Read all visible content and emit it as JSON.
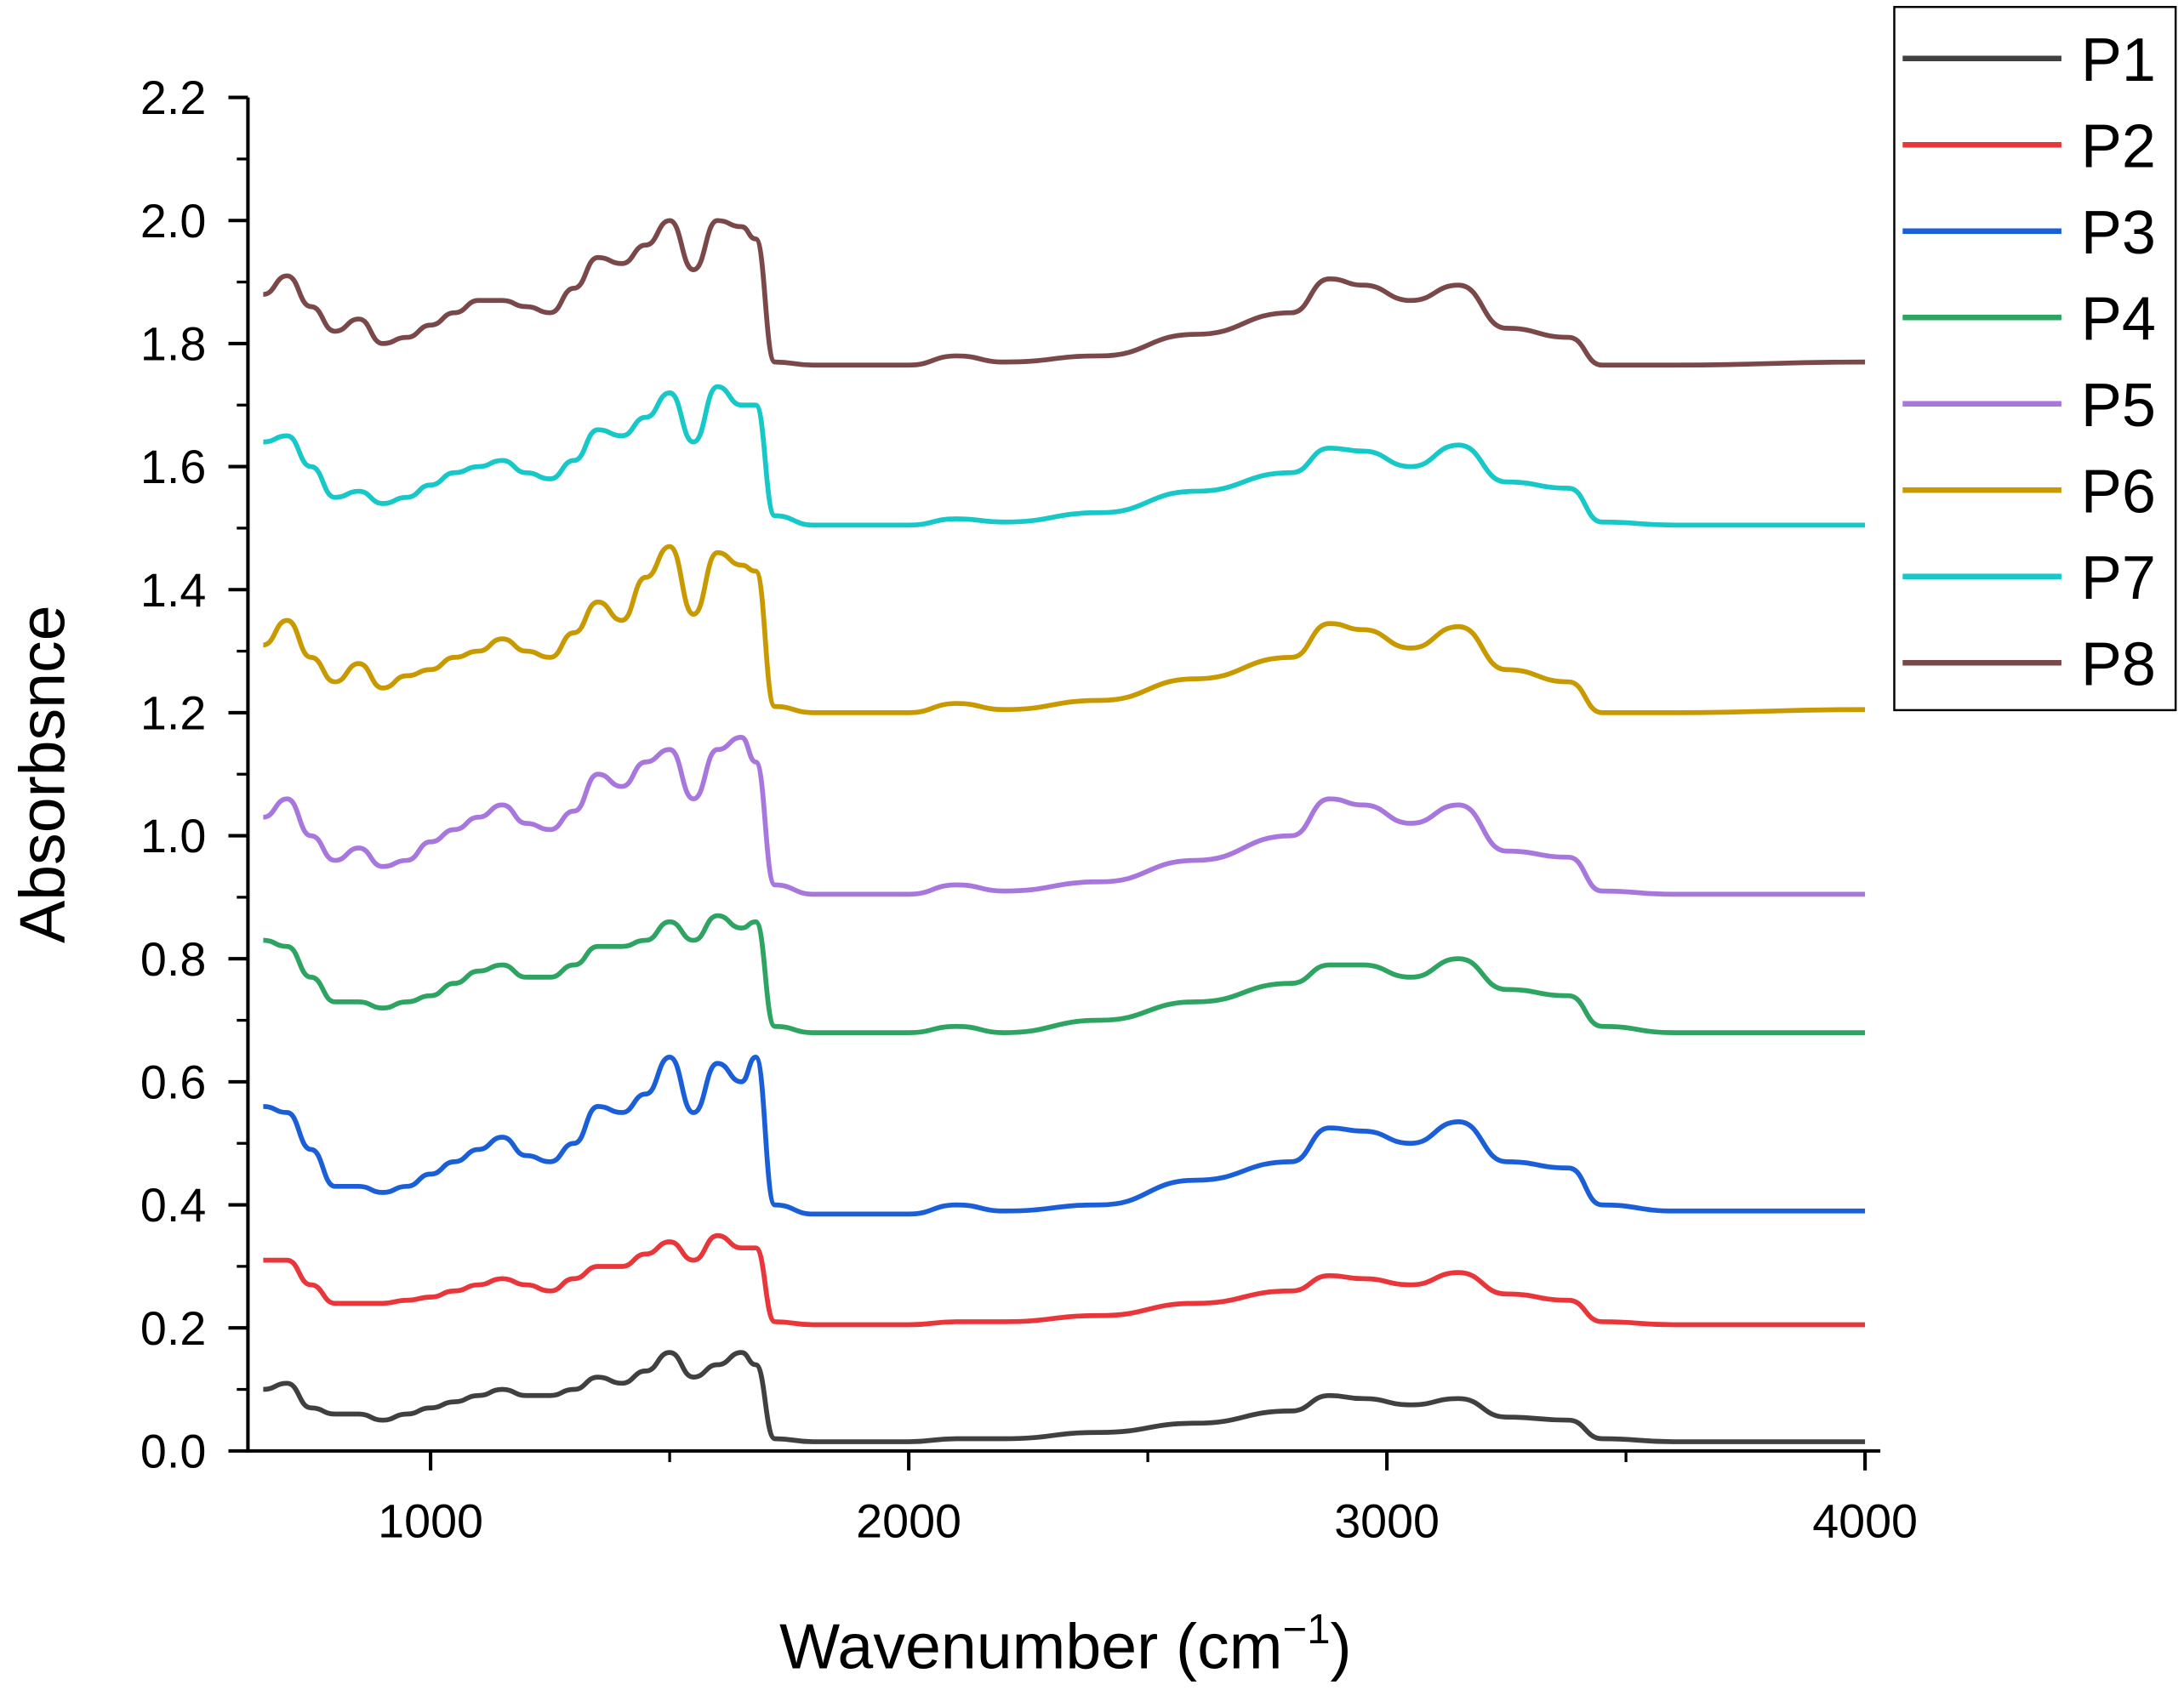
{
  "chart_data": {
    "type": "line",
    "title": "",
    "xlabel": "Wavenumber (cm",
    "xlabel_sup": "−1",
    "xlabel_close": ")",
    "ylabel": "Absorbsnce",
    "xlim": [
      618,
      4032
    ],
    "ylim": [
      0.0,
      2.2
    ],
    "xticks": [
      1000,
      2000,
      3000,
      4000
    ],
    "xtick_labels": [
      "1000",
      "2000",
      "3000",
      "4000"
    ],
    "yticks": [
      0.0,
      0.2,
      0.4,
      0.6,
      0.8,
      1.0,
      1.2,
      1.4,
      1.6,
      1.8,
      2.0,
      2.2
    ],
    "ytick_labels": [
      "0.0",
      "0.2",
      "0.4",
      "0.6",
      "0.8",
      "1.0",
      "1.2",
      "1.4",
      "1.6",
      "1.8",
      "2.0",
      "2.2"
    ],
    "grid": false,
    "legend_position": "top-right",
    "x": [
      650,
      700,
      750,
      800,
      850,
      900,
      950,
      1000,
      1050,
      1100,
      1150,
      1200,
      1250,
      1300,
      1350,
      1400,
      1450,
      1500,
      1550,
      1600,
      1650,
      1680,
      1720,
      1800,
      2000,
      2100,
      2200,
      2400,
      2600,
      2800,
      2880,
      2950,
      3050,
      3150,
      3250,
      3380,
      3450,
      3600,
      4000
    ],
    "series": [
      {
        "name": "P1",
        "color": "#404040",
        "values": [
          0.1,
          0.11,
          0.07,
          0.06,
          0.06,
          0.05,
          0.06,
          0.07,
          0.08,
          0.09,
          0.1,
          0.09,
          0.09,
          0.1,
          0.12,
          0.11,
          0.13,
          0.16,
          0.12,
          0.14,
          0.16,
          0.14,
          0.02,
          0.015,
          0.015,
          0.02,
          0.02,
          0.03,
          0.045,
          0.065,
          0.09,
          0.085,
          0.075,
          0.085,
          0.055,
          0.05,
          0.02,
          0.015,
          0.015
        ]
      },
      {
        "name": "P2",
        "color": "#e8363a",
        "values": [
          0.31,
          0.31,
          0.27,
          0.24,
          0.24,
          0.24,
          0.245,
          0.25,
          0.26,
          0.27,
          0.28,
          0.27,
          0.26,
          0.28,
          0.3,
          0.3,
          0.32,
          0.34,
          0.31,
          0.35,
          0.33,
          0.33,
          0.21,
          0.205,
          0.205,
          0.21,
          0.21,
          0.22,
          0.24,
          0.26,
          0.285,
          0.28,
          0.27,
          0.29,
          0.255,
          0.245,
          0.21,
          0.205,
          0.205
        ]
      },
      {
        "name": "P3",
        "color": "#1a5fd8",
        "values": [
          0.56,
          0.55,
          0.49,
          0.43,
          0.43,
          0.42,
          0.43,
          0.45,
          0.47,
          0.49,
          0.51,
          0.48,
          0.47,
          0.5,
          0.56,
          0.55,
          0.58,
          0.64,
          0.55,
          0.63,
          0.6,
          0.64,
          0.4,
          0.385,
          0.385,
          0.4,
          0.39,
          0.4,
          0.44,
          0.47,
          0.525,
          0.52,
          0.5,
          0.535,
          0.47,
          0.46,
          0.4,
          0.39,
          0.39
        ]
      },
      {
        "name": "P4",
        "color": "#2ea462",
        "values": [
          0.83,
          0.82,
          0.77,
          0.73,
          0.73,
          0.72,
          0.73,
          0.74,
          0.76,
          0.78,
          0.79,
          0.77,
          0.77,
          0.79,
          0.82,
          0.82,
          0.83,
          0.86,
          0.83,
          0.87,
          0.85,
          0.86,
          0.69,
          0.68,
          0.68,
          0.69,
          0.68,
          0.7,
          0.73,
          0.76,
          0.79,
          0.79,
          0.77,
          0.8,
          0.75,
          0.74,
          0.69,
          0.68,
          0.68
        ]
      },
      {
        "name": "P5",
        "color": "#a877de",
        "values": [
          1.03,
          1.06,
          1.0,
          0.96,
          0.98,
          0.95,
          0.96,
          0.99,
          1.01,
          1.03,
          1.05,
          1.02,
          1.01,
          1.04,
          1.1,
          1.08,
          1.12,
          1.14,
          1.06,
          1.14,
          1.16,
          1.12,
          0.92,
          0.905,
          0.905,
          0.92,
          0.91,
          0.925,
          0.96,
          1.0,
          1.06,
          1.05,
          1.02,
          1.05,
          0.975,
          0.965,
          0.91,
          0.905,
          0.905
        ]
      },
      {
        "name": "P6",
        "color": "#c89a00",
        "values": [
          1.31,
          1.35,
          1.29,
          1.25,
          1.28,
          1.24,
          1.26,
          1.27,
          1.29,
          1.3,
          1.32,
          1.3,
          1.29,
          1.33,
          1.38,
          1.35,
          1.42,
          1.47,
          1.36,
          1.46,
          1.44,
          1.43,
          1.21,
          1.2,
          1.2,
          1.215,
          1.205,
          1.22,
          1.255,
          1.29,
          1.345,
          1.335,
          1.305,
          1.34,
          1.27,
          1.25,
          1.2,
          1.2,
          1.205
        ]
      },
      {
        "name": "P7",
        "color": "#17c8c8",
        "values": [
          1.64,
          1.65,
          1.6,
          1.55,
          1.56,
          1.54,
          1.55,
          1.57,
          1.59,
          1.6,
          1.61,
          1.59,
          1.58,
          1.61,
          1.66,
          1.65,
          1.68,
          1.72,
          1.64,
          1.73,
          1.7,
          1.7,
          1.52,
          1.505,
          1.505,
          1.515,
          1.51,
          1.525,
          1.56,
          1.59,
          1.63,
          1.625,
          1.6,
          1.635,
          1.575,
          1.565,
          1.51,
          1.505,
          1.505
        ]
      },
      {
        "name": "P8",
        "color": "#7a4848",
        "values": [
          1.88,
          1.91,
          1.86,
          1.82,
          1.84,
          1.8,
          1.81,
          1.83,
          1.85,
          1.87,
          1.87,
          1.86,
          1.85,
          1.89,
          1.94,
          1.93,
          1.96,
          2.0,
          1.92,
          2.0,
          1.99,
          1.97,
          1.77,
          1.765,
          1.765,
          1.78,
          1.77,
          1.78,
          1.815,
          1.85,
          1.905,
          1.895,
          1.87,
          1.895,
          1.825,
          1.81,
          1.765,
          1.765,
          1.77
        ]
      }
    ]
  }
}
